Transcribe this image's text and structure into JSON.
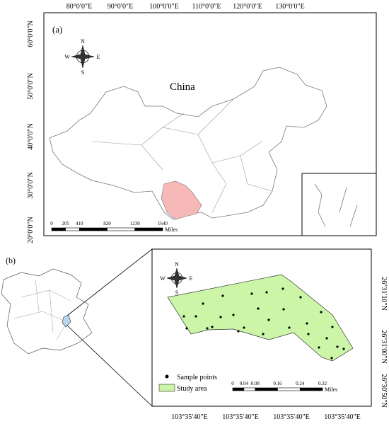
{
  "panel_a": {
    "label": "(a)",
    "country": "China",
    "lon_labels": [
      "80°0′0″E",
      "90°0′0″E",
      "100°0′0″E",
      "110°0′0″E",
      "120°0′0″E",
      "130°0′0″E"
    ],
    "lat_labels": [
      "60°0′0″N",
      "50°0′0″N",
      "40°0′0″N",
      "30°0′0″N",
      "20°0′0″N"
    ],
    "compass": {
      "n": "N",
      "s": "S",
      "w": "W",
      "e": "E"
    },
    "scale": {
      "ticks": [
        "0",
        "205",
        "410",
        "820",
        "1230",
        "1640"
      ],
      "unit": "Miles"
    }
  },
  "panel_b": {
    "label": "(b)",
    "lat_labels": [
      "26°31′10″N",
      "26°31′00″N",
      "26°30′50″N"
    ],
    "lon_labels": [
      "103°35′40″E",
      "103°35′40″E",
      "103°35′40″E",
      "103°35′40″E"
    ],
    "compass": {
      "n": "N",
      "s": "S",
      "w": "W",
      "e": "E"
    },
    "legend": {
      "points": "Sample points",
      "area": "Study area"
    },
    "scale": {
      "ticks": [
        "0",
        "0.04",
        "0.08",
        "0.16",
        "0.24",
        "0.32"
      ],
      "unit": "Miles"
    }
  }
}
